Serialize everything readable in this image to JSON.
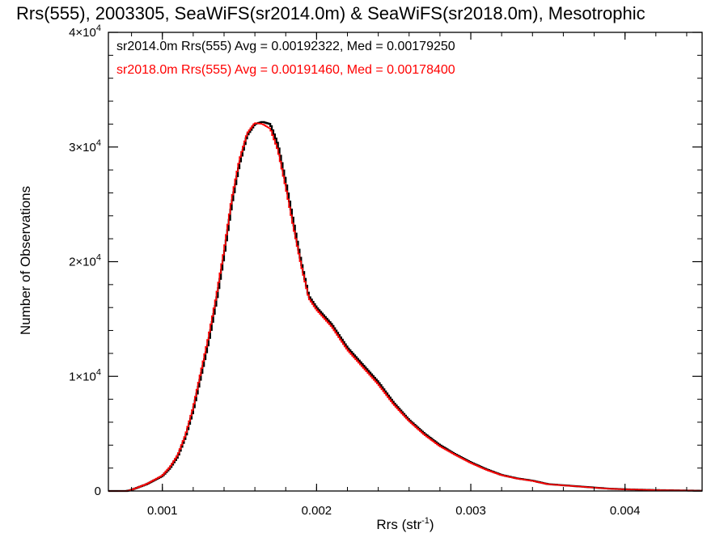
{
  "chart_data": {
    "type": "line",
    "title": "Rrs(555), 2003305, SeaWiFS(sr2014.0m) & SeaWiFS(sr2018.0m), Mesotrophic",
    "xlabel": "Rrs (str",
    "xlabel_sup": "-1",
    "xlabel_end": ")",
    "ylabel": "Number of Observations",
    "xlim": [
      0.00065,
      0.0045
    ],
    "ylim": [
      0,
      40000
    ],
    "x_ticks": [
      {
        "value": 0.001,
        "label": "0.001"
      },
      {
        "value": 0.002,
        "label": "0.002"
      },
      {
        "value": 0.003,
        "label": "0.003"
      },
      {
        "value": 0.004,
        "label": "0.004"
      }
    ],
    "y_ticks": [
      {
        "value": 0,
        "mant": "0",
        "exp": ""
      },
      {
        "value": 10000,
        "mant": "1×10",
        "exp": "4"
      },
      {
        "value": 20000,
        "mant": "2×10",
        "exp": "4"
      },
      {
        "value": 30000,
        "mant": "3×10",
        "exp": "4"
      },
      {
        "value": 40000,
        "mant": "4×10",
        "exp": "4"
      }
    ],
    "grid": false,
    "legend_position": "top-left",
    "series": [
      {
        "name": "sr2014.0m Rrs(555) Avg = 0.00192322, Med = 0.00179250",
        "color": "#000000",
        "x": [
          0.0008,
          0.0009,
          0.001,
          0.00105,
          0.0011,
          0.00115,
          0.0012,
          0.00125,
          0.0013,
          0.00135,
          0.0014,
          0.00145,
          0.0015,
          0.00155,
          0.0016,
          0.00165,
          0.0017,
          0.00175,
          0.0018,
          0.00185,
          0.0019,
          0.00195,
          0.002,
          0.0021,
          0.0022,
          0.0023,
          0.0024,
          0.0025,
          0.0026,
          0.0027,
          0.0028,
          0.0029,
          0.003,
          0.0031,
          0.0032,
          0.0033,
          0.0034,
          0.0035,
          0.0036,
          0.0037,
          0.0038,
          0.0039,
          0.004,
          0.0042,
          0.0045
        ],
        "y": [
          100,
          600,
          1300,
          2000,
          3000,
          4700,
          7000,
          10000,
          13000,
          16500,
          20500,
          25000,
          28500,
          31000,
          32000,
          32200,
          32000,
          30200,
          27000,
          23500,
          20000,
          17000,
          16000,
          14500,
          12500,
          11000,
          9500,
          7700,
          6200,
          5000,
          4000,
          3200,
          2500,
          1900,
          1400,
          1100,
          900,
          600,
          500,
          400,
          300,
          200,
          150,
          80,
          20
        ]
      },
      {
        "name": "sr2018.0m Rrs(555) Avg = 0.00191460, Med = 0.00178400",
        "color": "#ff0000",
        "x": [
          0.0008,
          0.0009,
          0.001,
          0.00105,
          0.0011,
          0.00115,
          0.0012,
          0.00125,
          0.0013,
          0.00135,
          0.0014,
          0.00145,
          0.0015,
          0.00155,
          0.0016,
          0.00165,
          0.0017,
          0.00175,
          0.0018,
          0.00185,
          0.0019,
          0.00195,
          0.002,
          0.0021,
          0.0022,
          0.0023,
          0.0024,
          0.0025,
          0.0026,
          0.0027,
          0.0028,
          0.0029,
          0.003,
          0.0031,
          0.0032,
          0.0033,
          0.0034,
          0.0035,
          0.0036,
          0.0037,
          0.0038,
          0.0039,
          0.004,
          0.0042,
          0.0045
        ],
        "y": [
          100,
          620,
          1350,
          2100,
          3150,
          4900,
          7300,
          10400,
          13500,
          17000,
          21000,
          25500,
          28900,
          31200,
          32100,
          32000,
          31600,
          29700,
          26500,
          23000,
          19700,
          16800,
          15800,
          14300,
          12300,
          10800,
          9300,
          7550,
          6100,
          4900,
          3900,
          3150,
          2450,
          1850,
          1380,
          1080,
          880,
          590,
          490,
          390,
          290,
          195,
          145,
          78,
          20
        ]
      }
    ]
  }
}
